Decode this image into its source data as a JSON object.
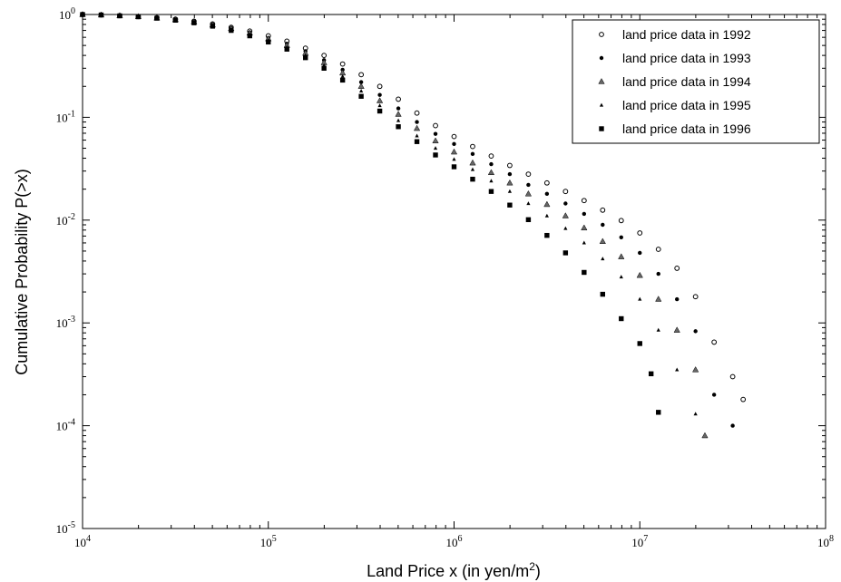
{
  "chart_data": {
    "type": "scatter",
    "title": "",
    "xlabel": "Land Price x (in yen/m",
    "xlabel_sup": "2",
    "xlabel_suffix": ")",
    "ylabel": "Cumulative Probability P(>x)",
    "xscale": "log",
    "yscale": "log",
    "xlim": [
      10000,
      100000000
    ],
    "ylim": [
      1e-05,
      1
    ],
    "x_ticks": [
      {
        "base": "10",
        "exp": "4",
        "value": 10000
      },
      {
        "base": "10",
        "exp": "5",
        "value": 100000
      },
      {
        "base": "10",
        "exp": "6",
        "value": 1000000
      },
      {
        "base": "10",
        "exp": "7",
        "value": 10000000
      },
      {
        "base": "10",
        "exp": "8",
        "value": 100000000
      }
    ],
    "y_ticks": [
      {
        "base": "10",
        "exp": "0",
        "value": 1
      },
      {
        "base": "10",
        "exp": "-1",
        "value": 0.1
      },
      {
        "base": "10",
        "exp": "-2",
        "value": 0.01
      },
      {
        "base": "10",
        "exp": "-3",
        "value": 0.001
      },
      {
        "base": "10",
        "exp": "-4",
        "value": 0.0001
      },
      {
        "base": "10",
        "exp": "-5",
        "value": 1e-05
      }
    ],
    "grid": false,
    "legend_position": "top-right",
    "series": [
      {
        "name": "land price data in 1992",
        "marker": "ring",
        "color": "#000000",
        "x": [
          10000,
          12590,
          15850,
          19950,
          25120,
          31620,
          39810,
          50120,
          63100,
          79430,
          100000,
          125900,
          158500,
          199500,
          251200,
          316200,
          398100,
          501200,
          631000,
          794300,
          1000000,
          1259000,
          1585000,
          1995000,
          2512000,
          3162000,
          3981000,
          5012000,
          6310000,
          7943000,
          10000000,
          12590000,
          15850000,
          19950000,
          25120000,
          31620000,
          36000000
        ],
        "y": [
          1.0,
          0.99,
          0.975,
          0.955,
          0.93,
          0.9,
          0.86,
          0.81,
          0.75,
          0.69,
          0.62,
          0.55,
          0.47,
          0.4,
          0.33,
          0.26,
          0.2,
          0.15,
          0.11,
          0.083,
          0.065,
          0.052,
          0.042,
          0.034,
          0.028,
          0.023,
          0.019,
          0.0155,
          0.0125,
          0.0099,
          0.0075,
          0.0052,
          0.0034,
          0.0018,
          0.00065,
          0.0003,
          0.00018
        ]
      },
      {
        "name": "land price data in 1993",
        "marker": "dot",
        "color": "#000000",
        "x": [
          10000,
          12590,
          15850,
          19950,
          25120,
          31620,
          39810,
          50120,
          63100,
          79430,
          100000,
          125900,
          158500,
          199500,
          251200,
          316200,
          398100,
          501200,
          631000,
          794300,
          1000000,
          1259000,
          1585000,
          1995000,
          2512000,
          3162000,
          3981000,
          5012000,
          6310000,
          7943000,
          10000000,
          12590000,
          15850000,
          19950000,
          25120000,
          31620000
        ],
        "y": [
          1.0,
          0.99,
          0.975,
          0.955,
          0.93,
          0.9,
          0.86,
          0.8,
          0.74,
          0.67,
          0.59,
          0.52,
          0.44,
          0.36,
          0.29,
          0.22,
          0.165,
          0.122,
          0.09,
          0.069,
          0.055,
          0.044,
          0.035,
          0.028,
          0.022,
          0.018,
          0.0145,
          0.0115,
          0.009,
          0.0068,
          0.0048,
          0.003,
          0.0017,
          0.00083,
          0.0002,
          0.0001
        ]
      },
      {
        "name": "land price data in 1994",
        "marker": "triangle",
        "color": "#000000",
        "x": [
          10000,
          12590,
          15850,
          19950,
          25120,
          31620,
          39810,
          50120,
          63100,
          79430,
          100000,
          125900,
          158500,
          199500,
          251200,
          316200,
          398100,
          501200,
          631000,
          794300,
          1000000,
          1259000,
          1585000,
          1995000,
          2512000,
          3162000,
          3981000,
          5012000,
          6310000,
          7943000,
          10000000,
          12590000,
          15850000,
          19950000,
          22400000
        ],
        "y": [
          1.0,
          0.99,
          0.975,
          0.955,
          0.925,
          0.89,
          0.85,
          0.79,
          0.73,
          0.66,
          0.58,
          0.5,
          0.42,
          0.34,
          0.27,
          0.2,
          0.145,
          0.107,
          0.078,
          0.059,
          0.046,
          0.036,
          0.029,
          0.023,
          0.018,
          0.0142,
          0.011,
          0.0084,
          0.0062,
          0.0044,
          0.0029,
          0.0017,
          0.00085,
          0.00035,
          8e-05
        ]
      },
      {
        "name": "land price data in 1995",
        "marker": "small-triangle",
        "color": "#000000",
        "x": [
          10000,
          12590,
          15850,
          19950,
          25120,
          31620,
          39810,
          50120,
          63100,
          79430,
          100000,
          125900,
          158500,
          199500,
          251200,
          316200,
          398100,
          501200,
          631000,
          794300,
          1000000,
          1259000,
          1585000,
          1995000,
          2512000,
          3162000,
          3981000,
          5012000,
          6310000,
          7943000,
          10000000,
          12590000,
          15850000,
          19950000
        ],
        "y": [
          1.0,
          0.99,
          0.975,
          0.95,
          0.92,
          0.88,
          0.84,
          0.78,
          0.71,
          0.64,
          0.56,
          0.48,
          0.4,
          0.32,
          0.25,
          0.18,
          0.13,
          0.093,
          0.066,
          0.05,
          0.039,
          0.031,
          0.024,
          0.019,
          0.0145,
          0.011,
          0.0083,
          0.006,
          0.0042,
          0.0028,
          0.0017,
          0.00085,
          0.00035,
          0.00013
        ]
      },
      {
        "name": "land price data in 1996",
        "marker": "square",
        "color": "#000000",
        "x": [
          10000,
          12590,
          15850,
          19950,
          25120,
          31620,
          39810,
          50120,
          63100,
          79430,
          100000,
          125900,
          158500,
          199500,
          251200,
          316200,
          398100,
          501200,
          631000,
          794300,
          1000000,
          1259000,
          1585000,
          1995000,
          2512000,
          3162000,
          3981000,
          5012000,
          6310000,
          7943000,
          10000000,
          11500000,
          12590000
        ],
        "y": [
          1.0,
          0.99,
          0.97,
          0.95,
          0.92,
          0.88,
          0.83,
          0.77,
          0.7,
          0.62,
          0.54,
          0.46,
          0.38,
          0.3,
          0.23,
          0.16,
          0.115,
          0.081,
          0.058,
          0.043,
          0.033,
          0.025,
          0.019,
          0.014,
          0.0101,
          0.0071,
          0.0048,
          0.0031,
          0.0019,
          0.0011,
          0.00063,
          0.00032,
          0.000135
        ]
      }
    ]
  }
}
